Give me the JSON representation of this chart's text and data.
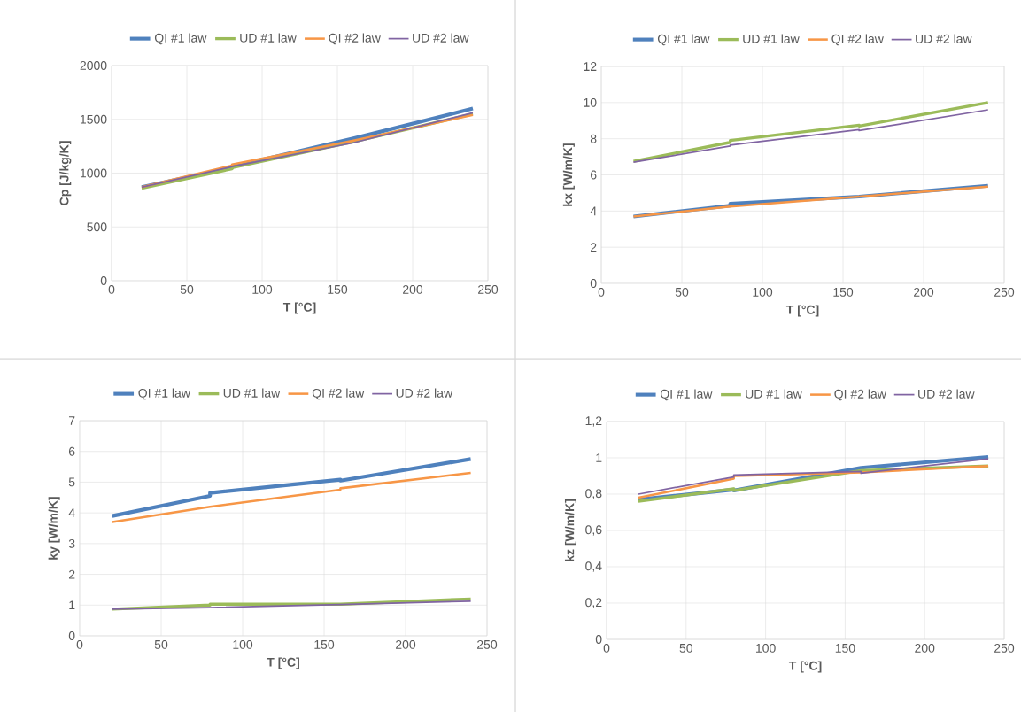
{
  "chart_data": [
    {
      "type": "line",
      "xlabel": "T [°C]",
      "ylabel": "Cp [J/kg/K]",
      "xlim": [
        0,
        250
      ],
      "ylim": [
        0,
        2000
      ],
      "xticks": [
        0,
        50,
        100,
        150,
        200,
        250
      ],
      "yticks": [
        0,
        500,
        1000,
        1500,
        2000
      ],
      "grid": true,
      "legend": "top",
      "series": [
        {
          "name": "QI #1 law",
          "color": "#4f81bd",
          "x": [
            20,
            80,
            80,
            160,
            240
          ],
          "values": [
            870,
            1050,
            1060,
            1320,
            1600
          ]
        },
        {
          "name": "UD #1 law",
          "color": "#9bbb59",
          "x": [
            20,
            80,
            80,
            160,
            240
          ],
          "values": [
            860,
            1040,
            1050,
            1290,
            1550
          ]
        },
        {
          "name": "QI #2 law",
          "color": "#f79646",
          "x": [
            20,
            80,
            80,
            160,
            240
          ],
          "values": [
            870,
            1070,
            1080,
            1300,
            1540
          ]
        },
        {
          "name": "UD #2 law",
          "color": "#8064a2",
          "x": [
            20,
            80,
            160,
            240
          ],
          "values": [
            870,
            1060,
            1280,
            1560
          ]
        }
      ]
    },
    {
      "type": "line",
      "xlabel": "T [°C]",
      "ylabel": "kx [W/m/K]",
      "xlim": [
        0,
        250
      ],
      "ylim": [
        0,
        12
      ],
      "xticks": [
        0,
        50,
        100,
        150,
        200,
        250
      ],
      "yticks": [
        0,
        2,
        4,
        6,
        8,
        10,
        12
      ],
      "grid": true,
      "legend": "top",
      "series": [
        {
          "name": "QI #1 law",
          "color": "#4f81bd",
          "x": [
            20,
            80,
            80,
            160,
            240
          ],
          "values": [
            3.7,
            4.3,
            4.4,
            4.8,
            5.4
          ]
        },
        {
          "name": "UD #1 law",
          "color": "#9bbb59",
          "x": [
            20,
            80,
            80,
            160,
            160,
            240
          ],
          "values": [
            6.75,
            7.8,
            7.9,
            8.75,
            8.7,
            10.0
          ]
        },
        {
          "name": "QI #2 law",
          "color": "#f79646",
          "x": [
            20,
            80,
            160,
            240
          ],
          "values": [
            3.7,
            4.25,
            4.8,
            5.35
          ]
        },
        {
          "name": "UD #2 law",
          "color": "#8064a2",
          "x": [
            20,
            80,
            80,
            160,
            160,
            240
          ],
          "values": [
            6.7,
            7.6,
            7.65,
            8.5,
            8.45,
            9.6
          ]
        }
      ]
    },
    {
      "type": "line",
      "xlabel": "T [°C]",
      "ylabel": "ky [W/m/K]",
      "xlim": [
        0,
        250
      ],
      "ylim": [
        0,
        7
      ],
      "xticks": [
        0,
        50,
        100,
        150,
        200,
        250
      ],
      "yticks": [
        0,
        1,
        2,
        3,
        4,
        5,
        6,
        7
      ],
      "grid": true,
      "legend": "top",
      "series": [
        {
          "name": "QI #1 law",
          "color": "#4f81bd",
          "x": [
            20,
            80,
            80,
            160,
            160,
            240
          ],
          "values": [
            3.9,
            4.55,
            4.65,
            5.08,
            5.05,
            5.75
          ]
        },
        {
          "name": "UD #1 law",
          "color": "#9bbb59",
          "x": [
            20,
            80,
            80,
            160,
            240
          ],
          "values": [
            0.87,
            1.0,
            1.03,
            1.03,
            1.2
          ]
        },
        {
          "name": "QI #2 law",
          "color": "#f79646",
          "x": [
            20,
            80,
            160,
            160,
            240
          ],
          "values": [
            3.7,
            4.2,
            4.75,
            4.8,
            5.3
          ]
        },
        {
          "name": "UD #2 law",
          "color": "#8064a2",
          "x": [
            20,
            80,
            160,
            240
          ],
          "values": [
            0.87,
            0.92,
            1.02,
            1.13
          ]
        }
      ]
    },
    {
      "type": "line",
      "xlabel": "T [°C]",
      "ylabel": "kz [W/m/K]",
      "xlim": [
        0,
        250
      ],
      "ylim": [
        0,
        1.2
      ],
      "xticks": [
        0,
        50,
        100,
        150,
        200,
        250
      ],
      "yticks": [
        0,
        {
          "value": 0.2,
          "label": "0,2"
        },
        {
          "value": 0.4,
          "label": "0,4"
        },
        {
          "value": 0.6,
          "label": "0,6"
        },
        {
          "value": 0.8,
          "label": "0,8"
        },
        1,
        {
          "value": 1.2,
          "label": "1,2"
        }
      ],
      "grid": true,
      "legend": "top",
      "series": [
        {
          "name": "QI #1 law",
          "color": "#4f81bd",
          "x": [
            20,
            80,
            80,
            160,
            240
          ],
          "values": [
            0.77,
            0.825,
            0.82,
            0.945,
            1.005
          ]
        },
        {
          "name": "UD #1 law",
          "color": "#9bbb59",
          "x": [
            20,
            80,
            80,
            160,
            240
          ],
          "values": [
            0.76,
            0.83,
            0.82,
            0.93,
            0.955
          ]
        },
        {
          "name": "QI #2 law",
          "color": "#f79646",
          "x": [
            20,
            80,
            80,
            160,
            240
          ],
          "values": [
            0.78,
            0.885,
            0.9,
            0.92,
            0.955
          ]
        },
        {
          "name": "UD #2 law",
          "color": "#8064a2",
          "x": [
            20,
            80,
            80,
            160,
            160,
            240
          ],
          "values": [
            0.8,
            0.895,
            0.905,
            0.925,
            0.915,
            0.995
          ]
        }
      ]
    }
  ]
}
